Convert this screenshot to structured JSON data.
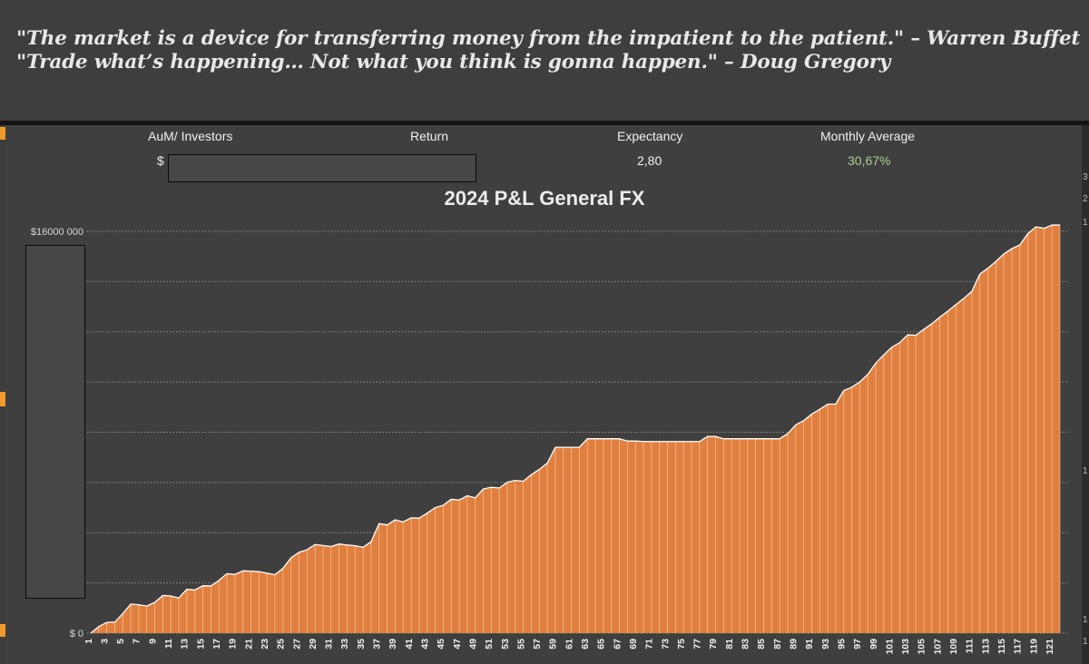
{
  "quotes": {
    "line1": "\"The market is a device for transferring money from the impatient to the patient.\" – Warren Buffet",
    "line2": "\"Trade what’s happening… Not what you think is gonna happen.\" – Doug Gregory"
  },
  "stats": {
    "aum_label": "AuM/ Investors",
    "aum_value": "$",
    "return_label": "Return",
    "expectancy_label": "Expectancy",
    "expectancy_value": "2,80",
    "monthly_label": "Monthly Average",
    "monthly_value": "30,67%"
  },
  "colors": {
    "area_fill": "#e07f3e",
    "bar_line": "#f4d2b6",
    "grid": "#8f8f8f",
    "monthly_green": "#a9d18e",
    "accent_orange": "#f39a2c"
  },
  "chart_data": {
    "type": "area",
    "title": "2024 P&L General FX",
    "xlabel": "",
    "ylabel": "",
    "y_tick_labels": [
      "$ 0",
      "$",
      "$",
      "$",
      "$16000 000"
    ],
    "x": [
      1,
      2,
      3,
      4,
      5,
      6,
      7,
      8,
      9,
      10,
      11,
      12,
      13,
      14,
      15,
      16,
      17,
      18,
      19,
      20,
      21,
      22,
      23,
      24,
      25,
      26,
      27,
      28,
      29,
      30,
      31,
      32,
      33,
      34,
      35,
      36,
      37,
      38,
      39,
      40,
      41,
      42,
      43,
      44,
      45,
      46,
      47,
      48,
      49,
      50,
      51,
      52,
      53,
      54,
      55,
      56,
      57,
      58,
      59,
      60,
      61,
      62,
      63,
      64,
      65,
      66,
      67,
      68,
      69,
      70,
      71,
      72,
      73,
      74,
      75,
      76,
      77,
      78,
      79,
      80,
      81,
      82,
      83,
      84,
      85,
      86,
      87,
      88,
      89,
      90,
      91,
      92,
      93,
      94,
      95,
      96,
      97,
      98,
      99,
      100,
      101,
      102,
      103,
      104,
      105,
      106,
      107,
      108,
      109,
      110,
      111,
      112,
      113,
      114,
      115,
      116,
      117,
      118,
      119,
      120,
      121,
      122
    ],
    "x_tick_labels": [
      "1",
      "3",
      "5",
      "7",
      "9",
      "11",
      "13",
      "15",
      "17",
      "19",
      "21",
      "23",
      "25",
      "27",
      "29",
      "31",
      "33",
      "35",
      "37",
      "39",
      "41",
      "43",
      "45",
      "47",
      "49",
      "51",
      "53",
      "55",
      "57",
      "59",
      "61",
      "63",
      "65",
      "67",
      "69",
      "71",
      "73",
      "75",
      "77",
      "79",
      "81",
      "83",
      "85",
      "87",
      "89",
      "91",
      "93",
      "95",
      "97",
      "99",
      "101",
      "103",
      "105",
      "107",
      "109",
      "111",
      "113",
      "115",
      "117",
      "119",
      "121"
    ],
    "y_range": [
      0,
      16000000
    ],
    "values": [
      0,
      260000,
      430000,
      440000,
      780000,
      1160000,
      1130000,
      1080000,
      1230000,
      1500000,
      1480000,
      1400000,
      1750000,
      1720000,
      1890000,
      1880000,
      2100000,
      2370000,
      2340000,
      2480000,
      2470000,
      2450000,
      2390000,
      2330000,
      2580000,
      3000000,
      3220000,
      3320000,
      3530000,
      3490000,
      3450000,
      3550000,
      3510000,
      3480000,
      3420000,
      3640000,
      4360000,
      4310000,
      4510000,
      4430000,
      4590000,
      4580000,
      4780000,
      5000000,
      5090000,
      5330000,
      5300000,
      5470000,
      5390000,
      5740000,
      5810000,
      5780000,
      6010000,
      6080000,
      6050000,
      6310000,
      6520000,
      6770000,
      7400000,
      7400000,
      7400000,
      7400000,
      7740000,
      7740000,
      7740000,
      7740000,
      7740000,
      7650000,
      7650000,
      7630000,
      7630000,
      7630000,
      7630000,
      7630000,
      7630000,
      7630000,
      7630000,
      7830000,
      7830000,
      7740000,
      7740000,
      7740000,
      7740000,
      7740000,
      7740000,
      7740000,
      7740000,
      7940000,
      8290000,
      8460000,
      8720000,
      8910000,
      9120000,
      9120000,
      9660000,
      9790000,
      10000000,
      10300000,
      10750000,
      11080000,
      11380000,
      11570000,
      11880000,
      11860000,
      12100000,
      12320000,
      12580000,
      12820000,
      13080000,
      13330000,
      13610000,
      14300000,
      14530000,
      14800000,
      15100000,
      15310000,
      15460000,
      15910000,
      16180000,
      16120000,
      16250000,
      16250000
    ],
    "grid": true,
    "legend": "none"
  }
}
